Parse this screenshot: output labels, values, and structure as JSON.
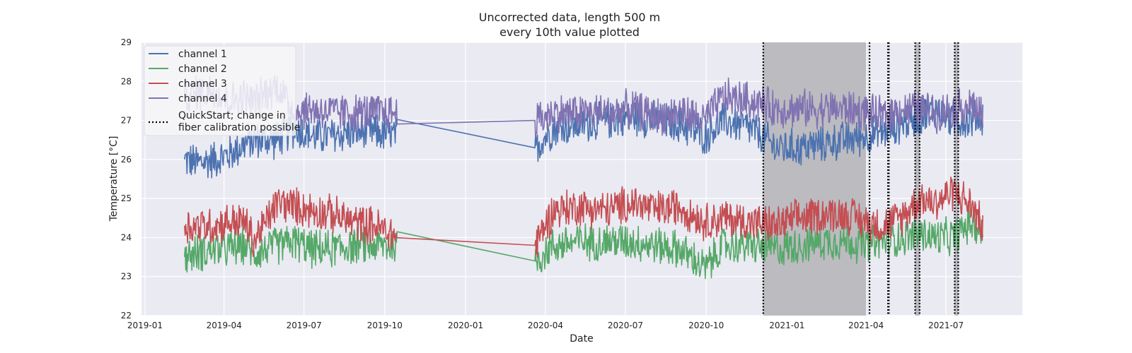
{
  "chart_data": {
    "type": "line",
    "title": [
      "Uncorrected data, length 500 m",
      "every 10th value plotted"
    ],
    "xlabel": "Date",
    "ylabel": "Temperature [°C]",
    "xlim": [
      "2018-12-28",
      "2021-09-26"
    ],
    "ylim": [
      22,
      29
    ],
    "x_ticks": [
      "2019-01",
      "2019-04",
      "2019-07",
      "2019-10",
      "2020-01",
      "2020-04",
      "2020-07",
      "2020-10",
      "2021-01",
      "2021-04",
      "2021-07"
    ],
    "y_ticks": [
      22,
      23,
      24,
      25,
      26,
      27,
      28,
      29
    ],
    "grid": true,
    "legend_position": "upper-left",
    "colors": {
      "background": "#EAEAF2",
      "grid": "#FFFFFF",
      "shade": "#B8B8BD"
    },
    "series": [
      {
        "name": "channel 1",
        "color": "#4C72B0",
        "points": [
          [
            "2019-02-15",
            26.0
          ],
          [
            "2019-03-01",
            25.9
          ],
          [
            "2019-03-20",
            26.0
          ],
          [
            "2019-04-05",
            26.1
          ],
          [
            "2019-04-25",
            26.4
          ],
          [
            "2019-05-05",
            26.5
          ],
          [
            "2019-06-01",
            26.5
          ],
          [
            "2019-06-20",
            26.8
          ],
          [
            "2019-07-10",
            26.6
          ],
          [
            "2019-08-01",
            26.6
          ],
          [
            "2019-08-25",
            26.7
          ],
          [
            "2019-09-20",
            26.7
          ],
          [
            "2019-10-15",
            26.6
          ],
          [
            "2020-03-20",
            26.3
          ],
          [
            "2020-04-10",
            26.8
          ],
          [
            "2020-05-10",
            26.9
          ],
          [
            "2020-06-10",
            27.0
          ],
          [
            "2020-07-10",
            27.1
          ],
          [
            "2020-08-05",
            27.0
          ],
          [
            "2020-09-01",
            26.9
          ],
          [
            "2020-09-30",
            26.6
          ],
          [
            "2020-10-20",
            27.0
          ],
          [
            "2020-11-20",
            26.8
          ],
          [
            "2020-12-20",
            26.3
          ],
          [
            "2021-01-15",
            26.3
          ],
          [
            "2021-02-10",
            26.4
          ],
          [
            "2021-03-10",
            26.5
          ],
          [
            "2021-04-01",
            26.6
          ],
          [
            "2021-04-20",
            26.7
          ],
          [
            "2021-05-10",
            26.9
          ],
          [
            "2021-06-01",
            27.1
          ],
          [
            "2021-06-20",
            27.3
          ],
          [
            "2021-07-10",
            27.0
          ],
          [
            "2021-07-30",
            27.0
          ],
          [
            "2021-08-12",
            27.1
          ]
        ]
      },
      {
        "name": "channel 2",
        "color": "#55A868",
        "points": [
          [
            "2019-02-15",
            23.5
          ],
          [
            "2019-03-01",
            23.6
          ],
          [
            "2019-03-20",
            23.7
          ],
          [
            "2019-04-05",
            23.7
          ],
          [
            "2019-04-25",
            23.8
          ],
          [
            "2019-05-05",
            23.6
          ],
          [
            "2019-06-01",
            23.8
          ],
          [
            "2019-06-20",
            23.9
          ],
          [
            "2019-07-10",
            23.7
          ],
          [
            "2019-08-01",
            23.7
          ],
          [
            "2019-08-25",
            23.8
          ],
          [
            "2019-09-20",
            23.8
          ],
          [
            "2019-10-15",
            23.8
          ],
          [
            "2020-03-20",
            23.4
          ],
          [
            "2020-04-10",
            23.8
          ],
          [
            "2020-05-10",
            23.9
          ],
          [
            "2020-06-10",
            23.9
          ],
          [
            "2020-07-10",
            23.9
          ],
          [
            "2020-08-05",
            23.8
          ],
          [
            "2020-09-01",
            23.7
          ],
          [
            "2020-09-30",
            23.2
          ],
          [
            "2020-10-20",
            23.8
          ],
          [
            "2020-11-20",
            23.8
          ],
          [
            "2020-12-20",
            23.7
          ],
          [
            "2021-01-15",
            23.8
          ],
          [
            "2021-02-10",
            23.9
          ],
          [
            "2021-03-10",
            23.9
          ],
          [
            "2021-04-01",
            23.8
          ],
          [
            "2021-04-20",
            23.9
          ],
          [
            "2021-05-10",
            24.0
          ],
          [
            "2021-06-01",
            24.1
          ],
          [
            "2021-06-20",
            24.0
          ],
          [
            "2021-07-10",
            24.0
          ],
          [
            "2021-07-30",
            24.4
          ],
          [
            "2021-08-12",
            24.1
          ]
        ]
      },
      {
        "name": "channel 3",
        "color": "#C44E52",
        "points": [
          [
            "2019-02-15",
            24.3
          ],
          [
            "2019-03-01",
            24.3
          ],
          [
            "2019-03-20",
            24.3
          ],
          [
            "2019-04-05",
            24.4
          ],
          [
            "2019-04-25",
            24.4
          ],
          [
            "2019-05-05",
            23.9
          ],
          [
            "2019-06-01",
            24.9
          ],
          [
            "2019-06-20",
            24.8
          ],
          [
            "2019-07-10",
            24.7
          ],
          [
            "2019-08-01",
            24.6
          ],
          [
            "2019-08-25",
            24.4
          ],
          [
            "2019-09-20",
            24.3
          ],
          [
            "2019-10-15",
            24.0
          ],
          [
            "2020-03-20",
            23.8
          ],
          [
            "2020-04-10",
            24.7
          ],
          [
            "2020-05-10",
            24.8
          ],
          [
            "2020-06-10",
            24.7
          ],
          [
            "2020-07-10",
            24.9
          ],
          [
            "2020-08-05",
            24.7
          ],
          [
            "2020-09-01",
            24.8
          ],
          [
            "2020-09-30",
            24.4
          ],
          [
            "2020-10-20",
            24.5
          ],
          [
            "2020-11-20",
            24.4
          ],
          [
            "2020-12-20",
            24.3
          ],
          [
            "2021-01-15",
            24.5
          ],
          [
            "2021-02-10",
            24.6
          ],
          [
            "2021-03-10",
            24.6
          ],
          [
            "2021-04-01",
            24.4
          ],
          [
            "2021-04-20",
            24.3
          ],
          [
            "2021-05-10",
            24.5
          ],
          [
            "2021-06-01",
            25.0
          ],
          [
            "2021-06-20",
            24.9
          ],
          [
            "2021-07-10",
            25.2
          ],
          [
            "2021-07-30",
            24.8
          ],
          [
            "2021-08-12",
            24.3
          ]
        ]
      },
      {
        "name": "channel 4",
        "color": "#8172B2",
        "points": [
          [
            "2019-02-15",
            27.6
          ],
          [
            "2019-03-01",
            27.7
          ],
          [
            "2019-03-20",
            27.8
          ],
          [
            "2019-04-05",
            27.5
          ],
          [
            "2019-04-25",
            27.6
          ],
          [
            "2019-05-05",
            27.5
          ],
          [
            "2019-06-01",
            27.9
          ],
          [
            "2019-06-20",
            27.2
          ],
          [
            "2019-07-10",
            27.3
          ],
          [
            "2019-08-01",
            27.2
          ],
          [
            "2019-08-25",
            27.2
          ],
          [
            "2019-09-20",
            27.2
          ],
          [
            "2019-10-15",
            27.2
          ],
          [
            "2020-03-20",
            27.0
          ],
          [
            "2020-04-10",
            27.2
          ],
          [
            "2020-05-10",
            27.2
          ],
          [
            "2020-06-10",
            27.2
          ],
          [
            "2020-07-10",
            27.3
          ],
          [
            "2020-08-05",
            27.1
          ],
          [
            "2020-09-01",
            27.2
          ],
          [
            "2020-09-30",
            27.0
          ],
          [
            "2020-10-20",
            27.6
          ],
          [
            "2020-11-20",
            27.5
          ],
          [
            "2020-12-20",
            27.3
          ],
          [
            "2021-01-15",
            27.3
          ],
          [
            "2021-02-10",
            27.3
          ],
          [
            "2021-03-10",
            27.3
          ],
          [
            "2021-04-01",
            27.2
          ],
          [
            "2021-04-20",
            27.1
          ],
          [
            "2021-05-10",
            27.3
          ],
          [
            "2021-06-01",
            27.3
          ],
          [
            "2021-06-20",
            27.2
          ],
          [
            "2021-07-10",
            27.3
          ],
          [
            "2021-07-30",
            27.4
          ],
          [
            "2021-08-12",
            27.1
          ]
        ]
      }
    ],
    "noisy_segments": [
      [
        "2019-02-15",
        "2019-05-05"
      ],
      [
        "2019-06-01",
        "2019-10-15"
      ],
      [
        "2020-03-20",
        "2021-08-12"
      ]
    ],
    "noise_amplitude": 0.55,
    "shaded_periods": [
      [
        "2020-12-05",
        "2021-04-01"
      ],
      [
        "2021-05-27",
        "2021-06-01"
      ],
      [
        "2021-07-11",
        "2021-07-15"
      ]
    ],
    "quickstart_lines": [
      "2020-12-05",
      "2021-04-05",
      "2021-04-26",
      "2021-04-27",
      "2021-05-27",
      "2021-06-01",
      "2021-07-11",
      "2021-07-15"
    ],
    "legend": [
      {
        "label": "channel 1",
        "color": "#4C72B0",
        "style": "solid"
      },
      {
        "label": "channel 2",
        "color": "#55A868",
        "style": "solid"
      },
      {
        "label": "channel 3",
        "color": "#C44E52",
        "style": "solid"
      },
      {
        "label": "channel 4",
        "color": "#8172B2",
        "style": "solid"
      },
      {
        "label": [
          "QuickStart; change in",
          "fiber calibration possible"
        ],
        "color": "#000000",
        "style": "dotted"
      }
    ]
  }
}
